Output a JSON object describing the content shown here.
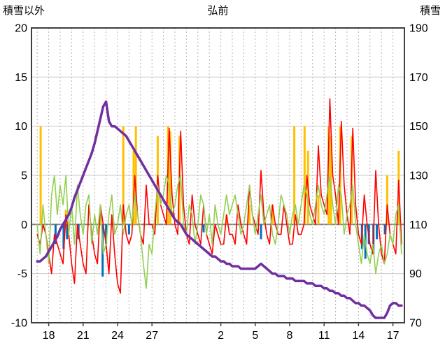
{
  "header": {
    "left_axis_title": "積雪以外",
    "station": "弘前",
    "right_axis_title": "積雪"
  },
  "chart_data": {
    "type": "line",
    "title": "弘前",
    "left_axis": {
      "label": "積雪以外",
      "min": -10,
      "max": 20,
      "ticks": [
        20,
        15,
        10,
        5,
        0,
        -5,
        -10
      ]
    },
    "right_axis": {
      "label": "積雪",
      "min": 70,
      "max": 190,
      "ticks": [
        190,
        170,
        150,
        130,
        110,
        90,
        70
      ]
    },
    "x_axis": {
      "tick_labels": [
        "18",
        "21",
        "24",
        "27",
        "2",
        "5",
        "8",
        "11",
        "14",
        "17"
      ],
      "tick_positions": [
        1,
        4,
        7,
        10,
        16,
        19,
        22,
        25,
        28,
        31
      ],
      "day_min": -0.5,
      "day_max": 32,
      "gridline_interval_days": 1
    },
    "colors": {
      "temperature": "#ff0000",
      "green_series": "#92d050",
      "snow_depth": "#7030a0",
      "sunshine_bars": "#ffc000",
      "precip_bars": "#0070c0",
      "grid_v": "#b4b4b4",
      "grid_h": "#c9c9c9",
      "zero_line": "#808080",
      "border": "#404040"
    },
    "sample_step_days": 0.25,
    "series": [
      {
        "name": "temperature",
        "axis": "left",
        "color_key": "temperature",
        "width": 1.6,
        "values": [
          -1,
          -2,
          0,
          -1,
          -3,
          -5,
          -1,
          -2,
          -3,
          -4,
          1,
          -1,
          -4,
          -6,
          0,
          -2,
          -4,
          -5,
          2,
          -1,
          -3,
          -4,
          2,
          0,
          -2,
          -5,
          1,
          -3,
          -6,
          -7,
          2,
          -1,
          -2,
          -1,
          5,
          1,
          -1,
          -2,
          4,
          0,
          0,
          -1,
          5,
          2,
          1,
          0,
          9.8,
          3,
          0,
          -1,
          9.5,
          2,
          -1,
          -2,
          3,
          0,
          -1,
          -2,
          2,
          -1,
          -2,
          -3,
          0,
          -1,
          -2,
          -2,
          1,
          -1,
          -1,
          -2,
          2,
          0,
          -1,
          -2,
          4,
          1,
          0,
          -1,
          5.5,
          1,
          -1,
          -2,
          2,
          0,
          -1,
          -1,
          2,
          0,
          -2,
          -2,
          1,
          -1,
          -1,
          0,
          5,
          2,
          1,
          0,
          8,
          3,
          2,
          1,
          12.8,
          5,
          3,
          0,
          10.5,
          4,
          1,
          -1,
          9.8,
          2,
          -1,
          -2,
          3,
          0,
          -2,
          -3,
          5.5,
          0,
          -3,
          -4,
          2,
          -1,
          -2,
          -3,
          4.5,
          -2
        ]
      },
      {
        "name": "green",
        "axis": "left",
        "color_key": "green_series",
        "width": 1.6,
        "values": [
          0,
          -3,
          2,
          -1,
          -4,
          3,
          5,
          1,
          4,
          2,
          5,
          -1,
          2,
          -2,
          4,
          1,
          -1,
          2,
          3,
          -2,
          1,
          -1,
          2,
          -3,
          -2,
          1,
          3,
          -1,
          0,
          2,
          -1,
          1,
          2,
          0,
          3,
          1,
          -1,
          -4,
          -6.5,
          -2,
          -3,
          1,
          4,
          2,
          3,
          5,
          4,
          1,
          2,
          4,
          5,
          0,
          -1,
          2,
          1,
          -2,
          0,
          3,
          2,
          -1,
          1,
          -2,
          2,
          0,
          -1,
          1,
          3,
          1,
          2,
          3,
          1,
          -1,
          0,
          2,
          4,
          1,
          -1,
          1,
          3,
          0,
          1,
          2,
          -1,
          -2,
          0,
          3,
          2,
          1,
          -1,
          1,
          2,
          0,
          2,
          4,
          3,
          1,
          0,
          2,
          4,
          2,
          1,
          3,
          5,
          2,
          0,
          4,
          3,
          -1,
          1,
          2,
          4,
          0,
          -2,
          -4,
          -1,
          -3,
          -4,
          -2,
          -5,
          -3,
          -2,
          -4,
          -3,
          -1,
          -2,
          1,
          2,
          -3
        ]
      },
      {
        "name": "snow_depth",
        "axis": "right",
        "color_key": "snow_depth",
        "width": 3.5,
        "values": [
          95,
          95,
          96,
          97,
          99,
          101,
          103,
          105,
          108,
          110,
          112,
          114,
          117,
          121,
          124,
          127,
          130,
          133,
          136,
          139,
          143,
          148,
          153,
          158,
          160,
          152,
          150,
          150,
          149,
          148,
          147,
          146,
          144,
          142,
          140,
          138,
          136,
          134,
          132,
          130,
          128,
          126,
          124,
          122,
          120,
          118,
          116,
          114,
          112,
          111,
          110,
          108,
          106,
          105,
          104,
          103,
          102,
          101,
          100,
          99,
          98,
          97,
          97,
          96,
          95,
          95,
          94,
          94,
          93,
          93,
          93,
          92,
          92,
          92,
          92,
          92,
          92,
          93,
          94,
          93,
          92,
          91,
          90,
          90,
          89,
          89,
          89,
          88,
          88,
          88,
          87,
          87,
          87,
          87,
          86,
          86,
          86,
          85,
          85,
          85,
          84,
          84,
          83,
          83,
          82,
          82,
          81,
          81,
          80,
          80,
          79,
          78,
          78,
          77,
          77,
          76,
          75,
          73,
          72,
          72,
          72,
          72,
          74,
          77,
          78,
          78,
          77,
          77
        ]
      }
    ],
    "bars": [
      {
        "name": "sunshine",
        "color_key": "sunshine_bars",
        "points": [
          [
            0.3,
            10
          ],
          [
            2.5,
            1.5
          ],
          [
            5.5,
            1
          ],
          [
            7.5,
            10
          ],
          [
            8.4,
            7.5
          ],
          [
            8.6,
            10
          ],
          [
            10.5,
            9
          ],
          [
            11.4,
            10
          ],
          [
            11.6,
            9.5
          ],
          [
            12.4,
            9
          ],
          [
            16.5,
            1
          ],
          [
            18.5,
            2
          ],
          [
            20.5,
            2
          ],
          [
            22.4,
            10
          ],
          [
            23.3,
            10
          ],
          [
            23.6,
            7.5
          ],
          [
            24.5,
            3
          ],
          [
            25.4,
            10
          ],
          [
            25.6,
            9
          ],
          [
            26.4,
            10
          ],
          [
            27.4,
            9
          ],
          [
            30.5,
            5
          ],
          [
            31.5,
            7.5
          ]
        ]
      },
      {
        "name": "precipitation",
        "color_key": "precip_bars",
        "points": [
          [
            1.6,
            -2
          ],
          [
            2.3,
            -2.5
          ],
          [
            2.6,
            -1.5
          ],
          [
            3.6,
            -1.5
          ],
          [
            5.7,
            -5.3
          ],
          [
            6.0,
            -2
          ],
          [
            8.0,
            -1
          ],
          [
            14.5,
            -0.8
          ],
          [
            19.5,
            -1.5
          ],
          [
            28.3,
            -2.5
          ],
          [
            28.6,
            -3.5
          ],
          [
            28.9,
            -2
          ],
          [
            29.3,
            -3
          ],
          [
            29.6,
            -1.5
          ],
          [
            30.3,
            -1
          ]
        ]
      }
    ]
  }
}
